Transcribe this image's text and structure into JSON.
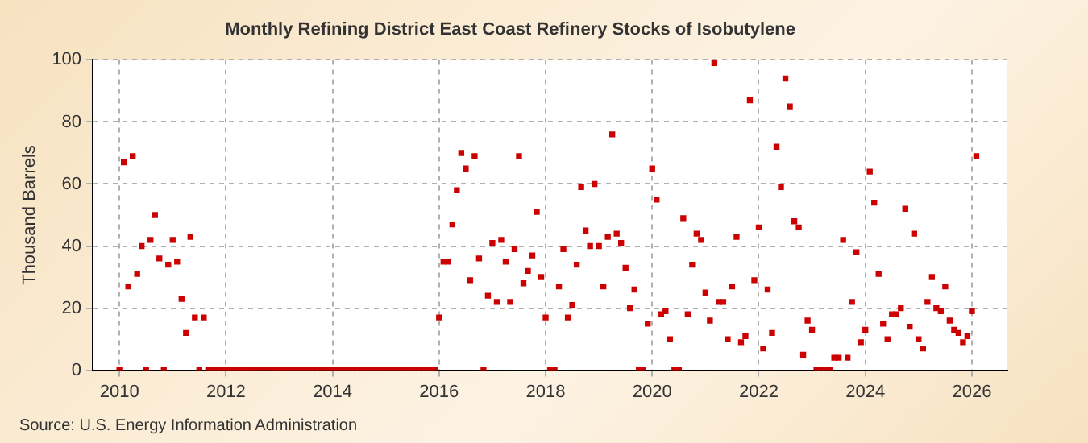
{
  "chart_data": {
    "type": "scatter",
    "title": "Monthly Refining District East Coast Refinery Stocks of Isobutylene",
    "ylabel": "Thousand Barrels",
    "annotations": [
      "Source: U.S. Energy Information Administration"
    ],
    "x": [
      "2010-01",
      "2010-02",
      "2010-03",
      "2010-04",
      "2010-05",
      "2010-06",
      "2010-07",
      "2010-08",
      "2010-09",
      "2010-10",
      "2010-11",
      "2010-12",
      "2011-01",
      "2011-02",
      "2011-03",
      "2011-04",
      "2011-05",
      "2011-06",
      "2011-07",
      "2011-08",
      "2011-09",
      "2011-10",
      "2011-11",
      "2011-12",
      "2012-01",
      "2012-02",
      "2012-03",
      "2012-04",
      "2012-05",
      "2012-06",
      "2012-07",
      "2012-08",
      "2012-09",
      "2012-10",
      "2012-11",
      "2012-12",
      "2013-01",
      "2013-02",
      "2013-03",
      "2013-04",
      "2013-05",
      "2013-06",
      "2013-07",
      "2013-08",
      "2013-09",
      "2013-10",
      "2013-11",
      "2013-12",
      "2014-01",
      "2014-02",
      "2014-03",
      "2014-04",
      "2014-05",
      "2014-06",
      "2014-07",
      "2014-08",
      "2014-09",
      "2014-10",
      "2014-11",
      "2014-12",
      "2015-01",
      "2015-02",
      "2015-03",
      "2015-04",
      "2015-05",
      "2015-06",
      "2015-07",
      "2015-08",
      "2015-09",
      "2015-10",
      "2015-11",
      "2015-12",
      "2016-01",
      "2016-02",
      "2016-03",
      "2016-04",
      "2016-05",
      "2016-06",
      "2016-07",
      "2016-08",
      "2016-09",
      "2016-10",
      "2016-11",
      "2016-12",
      "2017-01",
      "2017-02",
      "2017-03",
      "2017-04",
      "2017-05",
      "2017-06",
      "2017-07",
      "2017-08",
      "2017-09",
      "2017-10",
      "2017-11",
      "2017-12",
      "2018-01",
      "2018-02",
      "2018-03",
      "2018-04",
      "2018-05",
      "2018-06",
      "2018-07",
      "2018-08",
      "2018-09",
      "2018-10",
      "2018-11",
      "2018-12",
      "2019-01",
      "2019-02",
      "2019-03",
      "2019-04",
      "2019-05",
      "2019-06",
      "2019-07",
      "2019-08",
      "2019-09",
      "2019-10",
      "2019-11",
      "2019-12",
      "2020-01",
      "2020-02",
      "2020-03",
      "2020-04",
      "2020-05",
      "2020-06",
      "2020-07",
      "2020-08",
      "2020-09",
      "2020-10",
      "2020-11",
      "2020-12",
      "2021-01",
      "2021-02",
      "2021-03",
      "2021-04",
      "2021-05",
      "2021-06",
      "2021-07",
      "2021-08",
      "2021-09",
      "2021-10",
      "2021-11",
      "2021-12",
      "2022-01",
      "2022-02",
      "2022-03",
      "2022-04",
      "2022-05",
      "2022-06",
      "2022-07",
      "2022-08",
      "2022-09",
      "2022-10",
      "2022-11",
      "2022-12",
      "2023-01",
      "2023-02",
      "2023-03",
      "2023-04",
      "2023-05",
      "2023-06",
      "2023-07",
      "2023-08",
      "2023-09",
      "2023-10",
      "2023-11",
      "2023-12",
      "2024-01",
      "2024-02",
      "2024-03",
      "2024-04",
      "2024-05",
      "2024-06",
      "2024-07",
      "2024-08",
      "2024-09",
      "2024-10",
      "2024-11",
      "2024-12",
      "2025-01",
      "2025-02",
      "2025-03",
      "2025-04",
      "2025-05",
      "2025-06",
      "2025-07",
      "2025-08",
      "2025-09",
      "2025-10",
      "2025-11",
      "2025-12",
      "2026-01",
      "2026-02"
    ],
    "series": [
      {
        "color": "#cc0000",
        "values": [
          0,
          67,
          27,
          69,
          31,
          40,
          0,
          42,
          50,
          36,
          0,
          34,
          42,
          35,
          23,
          12,
          43,
          17,
          0,
          17,
          0,
          0,
          0,
          0,
          0,
          0,
          0,
          0,
          0,
          0,
          0,
          0,
          0,
          0,
          0,
          0,
          0,
          0,
          0,
          0,
          0,
          0,
          0,
          0,
          0,
          0,
          0,
          0,
          0,
          0,
          0,
          0,
          0,
          0,
          0,
          0,
          0,
          0,
          0,
          0,
          0,
          0,
          0,
          0,
          0,
          0,
          0,
          0,
          0,
          0,
          0,
          0,
          17,
          35,
          35,
          47,
          58,
          70,
          65,
          29,
          69,
          36,
          0,
          24,
          41,
          22,
          42,
          35,
          22,
          39,
          69,
          28,
          32,
          37,
          51,
          30,
          17,
          0,
          0,
          27,
          39,
          17,
          21,
          34,
          59,
          45,
          40,
          60,
          40,
          27,
          43,
          76,
          44,
          41,
          33,
          20,
          26,
          0,
          0,
          15,
          65,
          55,
          18,
          19,
          10,
          0,
          0,
          49,
          18,
          34,
          44,
          42,
          25,
          16,
          99,
          22,
          22,
          10,
          27,
          43,
          9,
          11,
          87,
          29,
          46,
          7,
          26,
          12,
          72,
          59,
          94,
          85,
          48,
          46,
          5,
          16,
          13,
          0,
          0,
          0,
          0,
          4,
          4,
          42,
          4,
          22,
          38,
          9,
          13,
          64,
          54,
          31,
          15,
          10,
          18,
          18,
          20,
          52,
          14,
          44,
          10,
          7,
          22,
          30,
          20,
          19,
          27,
          16,
          13,
          12,
          9,
          11,
          19,
          69
        ]
      }
    ],
    "xlim": [
      "2009-07",
      "2026-09"
    ],
    "xticks": [
      {
        "value": "2010",
        "label": "2010"
      },
      {
        "value": "2012",
        "label": "2012"
      },
      {
        "value": "2014",
        "label": "2014"
      },
      {
        "value": "2016",
        "label": "2016"
      },
      {
        "value": "2018",
        "label": "2018"
      },
      {
        "value": "2020",
        "label": "2020"
      },
      {
        "value": "2022",
        "label": "2022"
      },
      {
        "value": "2024",
        "label": "2024"
      },
      {
        "value": "2026",
        "label": "2026"
      }
    ],
    "ylim": [
      0,
      100
    ],
    "yticks": [
      0,
      20,
      40,
      60,
      80,
      100
    ],
    "grid": true,
    "marker": "square",
    "legend": false
  }
}
